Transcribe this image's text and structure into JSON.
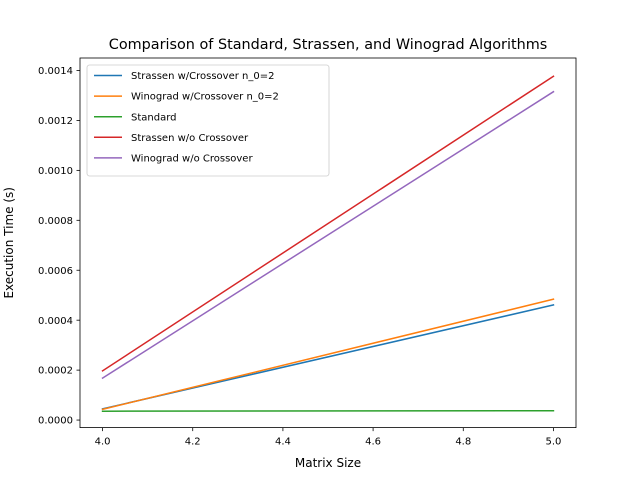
{
  "chart_data": {
    "type": "line",
    "title": "Comparison of Standard, Strassen, and Winograd Algorithms",
    "xlabel": "Matrix Size",
    "ylabel": "Execution Time (s)",
    "xlim": [
      3.95,
      5.05
    ],
    "ylim": [
      -3.02e-05,
      0.00145
    ],
    "xticks": [
      4.0,
      4.2,
      4.4,
      4.6,
      4.8,
      5.0
    ],
    "xtick_labels": [
      "4.0",
      "4.2",
      "4.4",
      "4.6",
      "4.8",
      "5.0"
    ],
    "yticks": [
      0,
      0.0002,
      0.0004,
      0.0006,
      0.0008,
      0.001,
      0.0012,
      0.0014
    ],
    "ytick_labels": [
      "0.0000",
      "0.0002",
      "0.0004",
      "0.0006",
      "0.0008",
      "0.0010",
      "0.0012",
      "0.0014"
    ],
    "grid": false,
    "legend_position": "top-left",
    "x": [
      4,
      5
    ],
    "series": [
      {
        "name": "Strassen w/Crossover n_0=2",
        "color": "#1f77b4",
        "values": [
          4.5e-05,
          0.000461
        ]
      },
      {
        "name": "Winograd w/Crossover n_0=2",
        "color": "#ff7f0e",
        "values": [
          4.3e-05,
          0.000484
        ]
      },
      {
        "name": "Standard",
        "color": "#2ca02c",
        "values": [
          3.55e-05,
          3.75e-05
        ]
      },
      {
        "name": "Strassen w/o Crossover",
        "color": "#d62728",
        "values": [
          0.000197,
          0.001377
        ]
      },
      {
        "name": "Winograd w/o Crossover",
        "color": "#9467bd",
        "values": [
          0.000168,
          0.001315
        ]
      }
    ]
  }
}
